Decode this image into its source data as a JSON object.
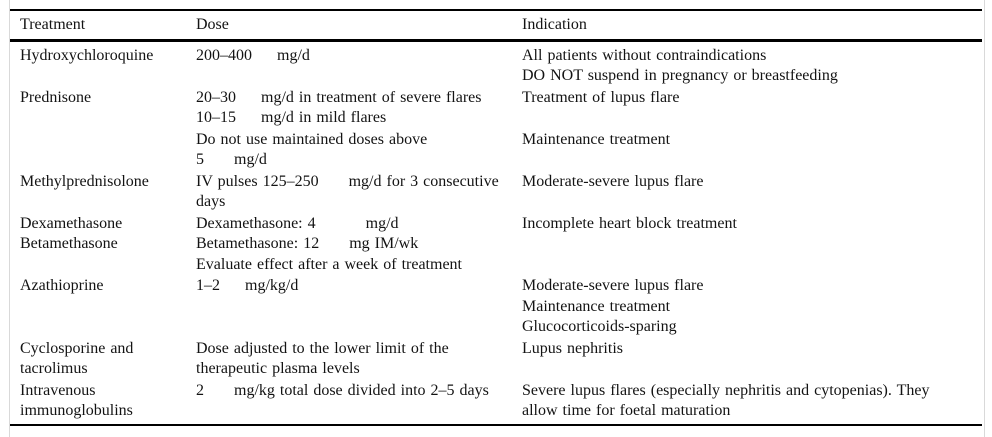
{
  "table": {
    "columns": [
      {
        "label": "Treatment"
      },
      {
        "label": "Dose"
      },
      {
        "label": "Indication"
      }
    ],
    "rows": [
      {
        "treatment": [
          "Hydroxychloroquine"
        ],
        "dose": [
          "200–400     mg/d"
        ],
        "indication": [
          "All patients without contraindications",
          "DO NOT suspend in pregnancy or breastfeeding"
        ]
      },
      {
        "treatment": [
          "Prednisone"
        ],
        "dose": [
          "20–30     mg/d in treatment of severe flares",
          "10–15     mg/d in mild flares"
        ],
        "indication": [
          "Treatment of lupus flare"
        ]
      },
      {
        "treatment": [],
        "dose": [
          "Do not use maintained doses above",
          "5      mg/d"
        ],
        "indication": [
          "Maintenance treatment"
        ]
      },
      {
        "treatment": [
          "Methylprednisolone"
        ],
        "dose": [
          "IV pulses 125–250      mg/d for 3 consecutive",
          "days"
        ],
        "indication": [
          "Moderate-severe lupus flare"
        ]
      },
      {
        "treatment": [
          "Dexamethasone",
          "Betamethasone"
        ],
        "dose": [
          "Dexamethasone: 4          mg/d",
          "Betamethasone: 12      mg IM/wk",
          "Evaluate effect after a week of treatment"
        ],
        "indication": [
          "Incomplete heart block treatment"
        ]
      },
      {
        "treatment": [
          "Azathioprine"
        ],
        "dose": [
          "1–2     mg/kg/d"
        ],
        "indication": [
          "Moderate-severe lupus flare",
          "Maintenance treatment",
          "Glucocorticoids-sparing"
        ]
      },
      {
        "treatment": [
          "Cyclosporine and",
          "tacrolimus"
        ],
        "dose": [
          "Dose adjusted to the lower limit of the",
          "therapeutic plasma levels"
        ],
        "indication": [
          "Lupus nephritis"
        ]
      },
      {
        "treatment": [
          "Intravenous",
          "immunoglobulins"
        ],
        "dose": [
          "2      mg/kg total dose divided into 2–5 days"
        ],
        "indication": [
          "Severe lupus flares (especially nephritis and cytopenias). They",
          "allow time for foetal maturation"
        ]
      }
    ]
  },
  "colors": {
    "text": "#131313",
    "rule": "#000000",
    "frame_edge": "#d9d9d9",
    "background": "#ffffff"
  }
}
